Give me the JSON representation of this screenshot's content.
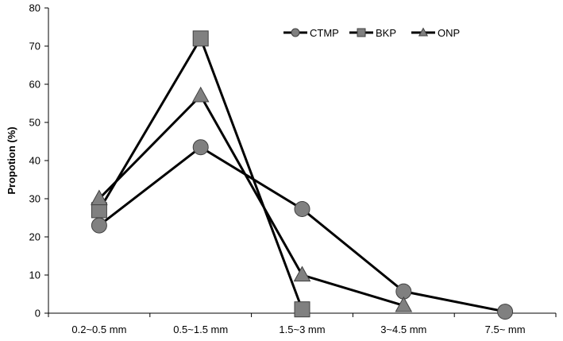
{
  "chart_data": {
    "type": "line",
    "title": "",
    "xlabel": "",
    "ylabel": "Propotion (%)",
    "categories": [
      "0.2~0.5 mm",
      "0.5~1.5 mm",
      "1.5~3 mm",
      "3~4.5 mm",
      "7.5~ mm"
    ],
    "ylim": [
      0,
      80
    ],
    "yticks": [
      0,
      10,
      20,
      30,
      40,
      50,
      60,
      70,
      80
    ],
    "grid": false,
    "legend_position": "top-right",
    "series": [
      {
        "name": "CTMP",
        "marker": "circle",
        "color": "#808080",
        "values": [
          23,
          43.5,
          27.3,
          5.7,
          0.4
        ]
      },
      {
        "name": "BKP",
        "marker": "square",
        "color": "#808080",
        "values": [
          27,
          72,
          1,
          null,
          null
        ]
      },
      {
        "name": "ONP",
        "marker": "triangle",
        "color": "#808080",
        "values": [
          30,
          57,
          10,
          2,
          null
        ]
      }
    ]
  }
}
